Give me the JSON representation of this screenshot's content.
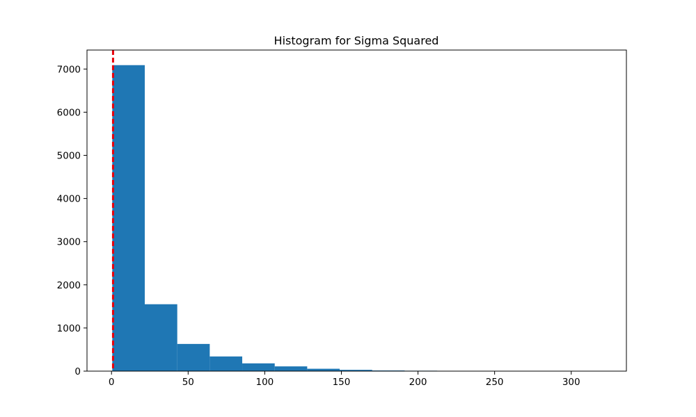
{
  "chart_data": {
    "type": "bar",
    "title": "Histogram for Sigma Squared",
    "xlabel": "",
    "ylabel": "",
    "xlim": [
      -16,
      336
    ],
    "ylim": [
      0,
      7440
    ],
    "x_ticks": [
      0,
      50,
      100,
      150,
      200,
      250,
      300
    ],
    "y_ticks": [
      0,
      1000,
      2000,
      3000,
      4000,
      5000,
      6000,
      7000
    ],
    "grid": false,
    "bins": [
      {
        "start": 0.5,
        "end": 21.7,
        "count": 7090
      },
      {
        "start": 21.7,
        "end": 42.9,
        "count": 1550
      },
      {
        "start": 42.9,
        "end": 64.1,
        "count": 630
      },
      {
        "start": 64.1,
        "end": 85.3,
        "count": 340
      },
      {
        "start": 85.3,
        "end": 106.5,
        "count": 180
      },
      {
        "start": 106.5,
        "end": 127.7,
        "count": 110
      },
      {
        "start": 127.7,
        "end": 148.9,
        "count": 55
      },
      {
        "start": 148.9,
        "end": 170.1,
        "count": 30
      },
      {
        "start": 170.1,
        "end": 191.3,
        "count": 15
      },
      {
        "start": 191.3,
        "end": 212.5,
        "count": 10
      },
      {
        "start": 212.5,
        "end": 233.7,
        "count": 5
      },
      {
        "start": 233.7,
        "end": 254.9,
        "count": 3
      },
      {
        "start": 254.9,
        "end": 276.1,
        "count": 2
      },
      {
        "start": 276.1,
        "end": 297.3,
        "count": 1
      },
      {
        "start": 297.3,
        "end": 318.5,
        "count": 1
      }
    ],
    "reference_line": {
      "x": 1.0,
      "style": "dashed"
    },
    "colors": {
      "bar": "#1f77b4",
      "reference_line": "#e8000b",
      "axis": "#000000"
    }
  }
}
